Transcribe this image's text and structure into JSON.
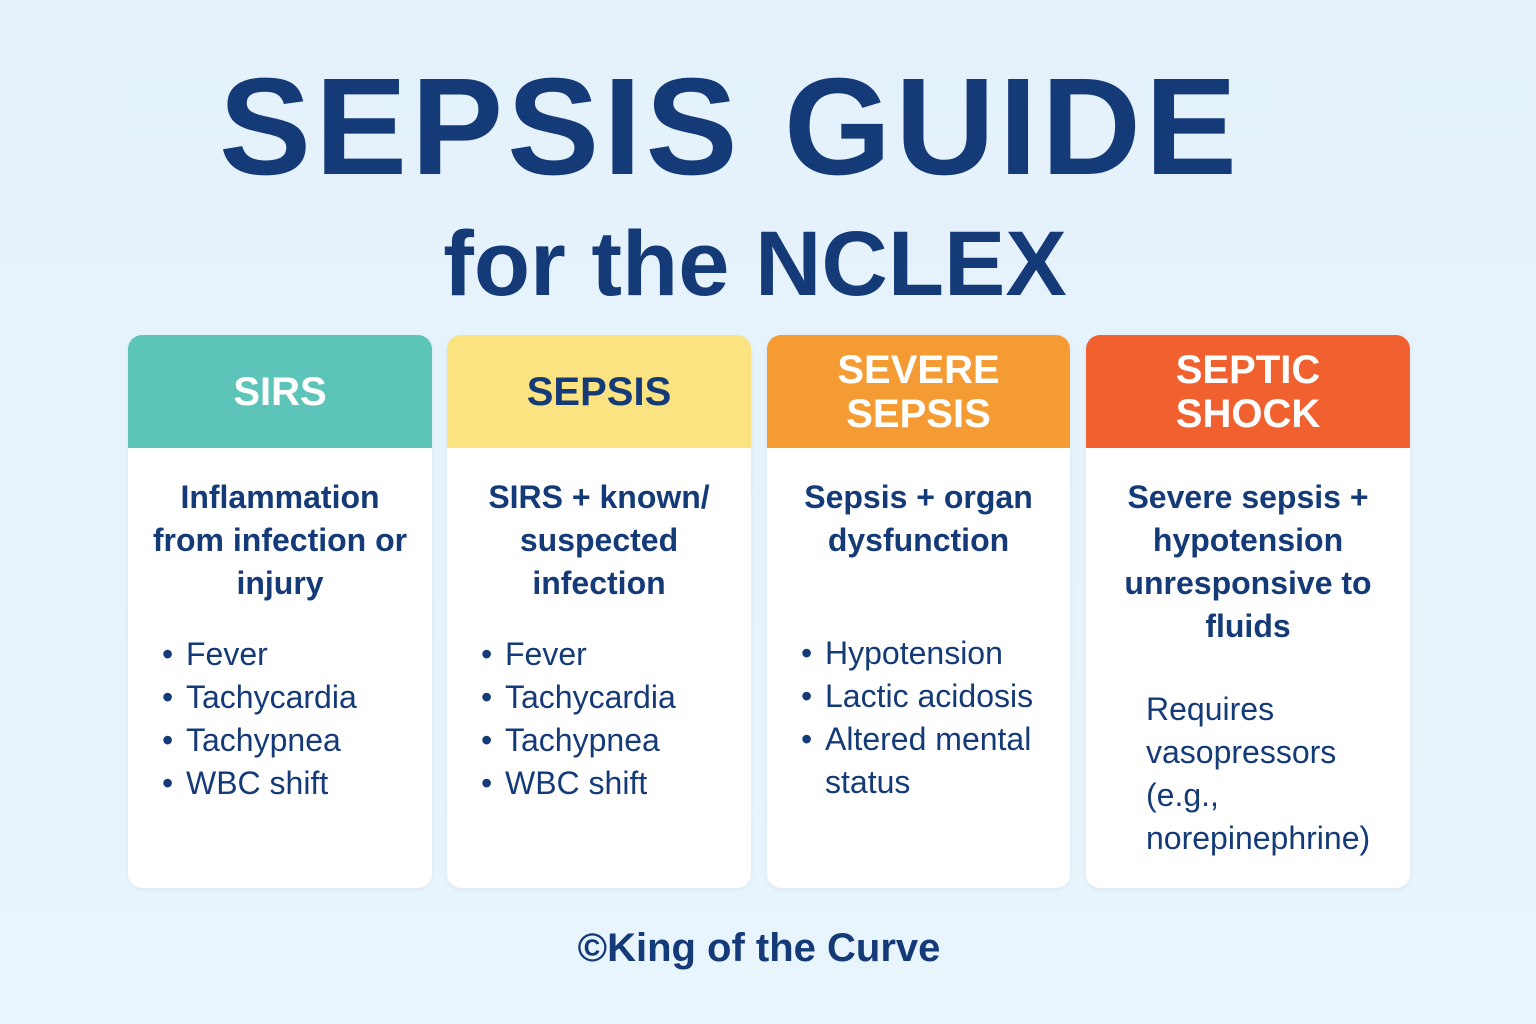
{
  "title": "SEPSIS GUIDE",
  "subtitle": "for the NCLEX",
  "cards": [
    {
      "header": "SIRS",
      "description": "Inflammation from infection or injury",
      "bullets": [
        "Fever",
        "Tachycardia",
        "Tachypnea",
        "WBC shift"
      ]
    },
    {
      "header": "SEPSIS",
      "description": "SIRS + known/ suspected infection",
      "bullets": [
        "Fever",
        "Tachycardia",
        "Tachypnea",
        "WBC shift"
      ]
    },
    {
      "header": "SEVERE SEPSIS",
      "description": "Sepsis + organ dysfunction",
      "bullets": [
        "Hypotension",
        "Lactic acidosis",
        "Altered mental status"
      ]
    },
    {
      "header": "SEPTIC SHOCK",
      "description": "Severe sepsis + hypotension unresponsive to fluids",
      "note": "Requires vasopressors (e.g., norepinephrine)"
    }
  ],
  "footer": "©King of the Curve"
}
